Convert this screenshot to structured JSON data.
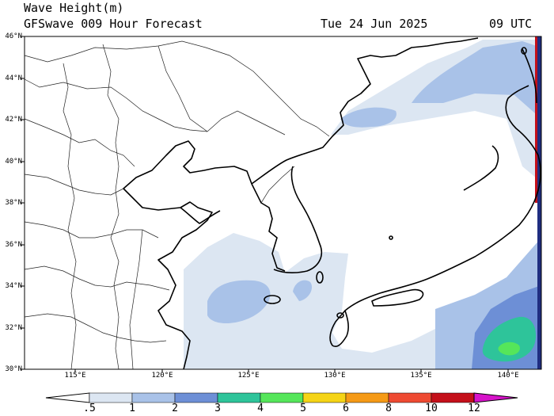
{
  "header": {
    "line1": "Wave Height(m)",
    "line2": "GFSwave 009 Hour Forecast",
    "date": "Tue 24 Jun 2025",
    "time": "09 UTC"
  },
  "map": {
    "lat_labels": [
      "46°N",
      "44°N",
      "42°N",
      "40°N",
      "38°N",
      "36°N",
      "34°N",
      "32°N",
      "30°N"
    ],
    "lon_labels": [
      "115°E",
      "120°E",
      "125°E",
      "130°E",
      "135°E",
      "140°E"
    ],
    "extent": {
      "lon_min": 111.5,
      "lon_max": 142.0,
      "lat_min": 30,
      "lat_max": 46
    }
  },
  "colorbar": {
    "labels": [
      ".5",
      "1",
      "2",
      "3",
      "4",
      "5",
      "6",
      "8",
      "10",
      "12"
    ],
    "colors": [
      "#dce6f2",
      "#a9c2e8",
      "#6d8fd6",
      "#2ec49a",
      "#55e65a",
      "#f5d416",
      "#f59a16",
      "#ee4a32",
      "#c4101a",
      "#d613c9"
    ]
  }
}
